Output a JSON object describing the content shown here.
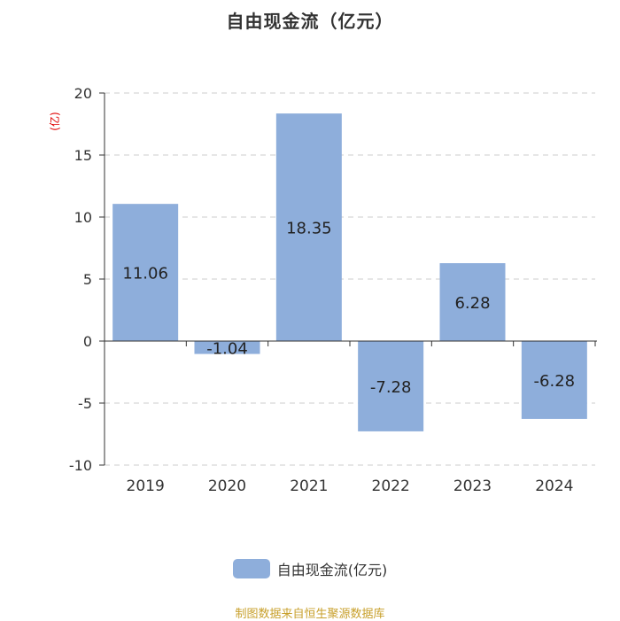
{
  "chart_data": {
    "type": "bar",
    "title": "自由现金流（亿元）",
    "ylabel": "(亿)",
    "categories": [
      "2019",
      "2020",
      "2021",
      "2022",
      "2023",
      "2024"
    ],
    "series": [
      {
        "name": "自由现金流(亿元)",
        "values": [
          11.06,
          -1.04,
          18.35,
          -7.28,
          6.28,
          -6.28
        ]
      }
    ],
    "data_labels": [
      "11.06",
      "-1.04",
      "18.35",
      "-7.28",
      "6.28",
      "-6.28"
    ],
    "ylim": [
      -10,
      20
    ],
    "yticks": [
      "20",
      "15",
      "10",
      "5",
      "0",
      "-5",
      "-10"
    ],
    "grid": true,
    "legend_position": "bottom"
  },
  "source_text": "制图数据来自恒生聚源数据库",
  "colors": {
    "bar": "#8eaedb",
    "grid": "#cccccc",
    "axis": "#333333",
    "ylabel": "#e00000",
    "source": "#c8a02c"
  }
}
